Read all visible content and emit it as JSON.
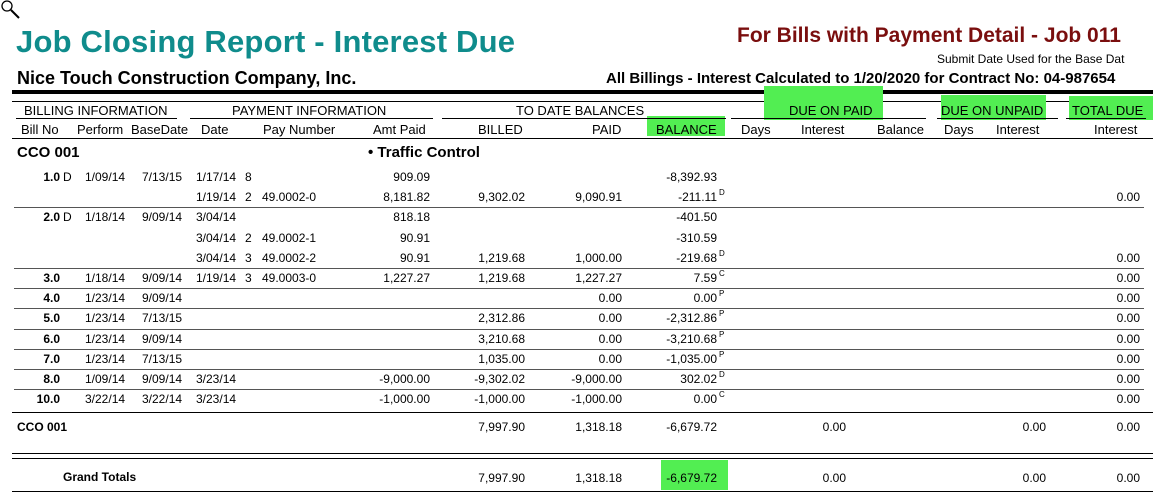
{
  "header": {
    "title": "Job Closing Report - Interest Due",
    "subtitle": "For Bills with Payment Detail - Job 011",
    "submit_note": "Submit Date Used for the Base Dat",
    "company": "Nice Touch Construction Company, Inc.",
    "billings_line": "All Billings - Interest Calculated to  1/20/2020 for Contract No: 04-987654"
  },
  "group_headers": {
    "billing": "BILLING INFORMATION",
    "payment": "PAYMENT INFORMATION",
    "to_date": "TO DATE BALANCES",
    "due_paid": "DUE ON PAID",
    "due_unpaid": "DUE ON UNPAID",
    "total_due": "TOTAL DUE"
  },
  "columns": {
    "bill_no": "Bill No",
    "perform": "Perform",
    "base_date": "BaseDate",
    "date": "Date",
    "pay_number": "Pay Number",
    "amt_paid": "Amt Paid",
    "billed": "BILLED",
    "paid": "PAID",
    "balance": "BALANCE",
    "days_paid": "Days",
    "interest_paid": "Interest",
    "balance_paid": "Balance",
    "days_unpaid": "Days",
    "interest_unpaid": "Interest",
    "interest_total": "Interest"
  },
  "section": {
    "code": "CCO 001",
    "name": "• Traffic Control"
  },
  "rows": [
    {
      "bill": "1.0",
      "flag": "D",
      "perform": "1/09/14",
      "base": "7/13/15",
      "date": "1/17/14",
      "seq": "8",
      "pay_no": "",
      "amt": "909.09",
      "billed": "",
      "paid": "",
      "balance": "-8,392.93",
      "bal_flag": "",
      "total": ""
    },
    {
      "bill": "",
      "flag": "",
      "perform": "",
      "base": "",
      "date": "1/19/14",
      "seq": "2",
      "pay_no": "49.0002-0",
      "amt": "8,181.82",
      "billed": "9,302.02",
      "paid": "9,090.91",
      "balance": "-211.11",
      "bal_flag": "D",
      "total": "0.00"
    },
    {
      "bill": "2.0",
      "flag": "D",
      "perform": "1/18/14",
      "base": "9/09/14",
      "date": "3/04/14",
      "seq": "",
      "pay_no": "",
      "amt": "818.18",
      "billed": "",
      "paid": "",
      "balance": "-401.50",
      "bal_flag": "",
      "total": ""
    },
    {
      "bill": "",
      "flag": "",
      "perform": "",
      "base": "",
      "date": "3/04/14",
      "seq": "2",
      "pay_no": "49.0002-1",
      "amt": "90.91",
      "billed": "",
      "paid": "",
      "balance": "-310.59",
      "bal_flag": "",
      "total": ""
    },
    {
      "bill": "",
      "flag": "",
      "perform": "",
      "base": "",
      "date": "3/04/14",
      "seq": "3",
      "pay_no": "49.0002-2",
      "amt": "90.91",
      "billed": "1,219.68",
      "paid": "1,000.00",
      "balance": "-219.68",
      "bal_flag": "D",
      "total": "0.00"
    },
    {
      "bill": "3.0",
      "flag": "",
      "perform": "1/18/14",
      "base": "9/09/14",
      "date": "1/19/14",
      "seq": "3",
      "pay_no": "49.0003-0",
      "amt": "1,227.27",
      "billed": "1,219.68",
      "paid": "1,227.27",
      "balance": "7.59",
      "bal_flag": "C",
      "total": "0.00"
    },
    {
      "bill": "4.0",
      "flag": "",
      "perform": "1/23/14",
      "base": "9/09/14",
      "date": "",
      "seq": "",
      "pay_no": "",
      "amt": "",
      "billed": "",
      "paid": "0.00",
      "balance": "0.00",
      "bal_flag": "P",
      "total": "0.00"
    },
    {
      "bill": "5.0",
      "flag": "",
      "perform": "1/23/14",
      "base": "7/13/15",
      "date": "",
      "seq": "",
      "pay_no": "",
      "amt": "",
      "billed": "2,312.86",
      "paid": "0.00",
      "balance": "-2,312.86",
      "bal_flag": "P",
      "total": "0.00"
    },
    {
      "bill": "6.0",
      "flag": "",
      "perform": "1/23/14",
      "base": "9/09/14",
      "date": "",
      "seq": "",
      "pay_no": "",
      "amt": "",
      "billed": "3,210.68",
      "paid": "0.00",
      "balance": "-3,210.68",
      "bal_flag": "P",
      "total": "0.00"
    },
    {
      "bill": "7.0",
      "flag": "",
      "perform": "1/23/14",
      "base": "7/13/15",
      "date": "",
      "seq": "",
      "pay_no": "",
      "amt": "",
      "billed": "1,035.00",
      "paid": "0.00",
      "balance": "-1,035.00",
      "bal_flag": "P",
      "total": "0.00"
    },
    {
      "bill": "8.0",
      "flag": "",
      "perform": "1/09/14",
      "base": "9/09/14",
      "date": "3/23/14",
      "seq": "",
      "pay_no": "",
      "amt": "-9,000.00",
      "billed": "-9,302.02",
      "paid": "-9,000.00",
      "balance": "302.02",
      "bal_flag": "D",
      "total": "0.00"
    },
    {
      "bill": "10.0",
      "flag": "",
      "perform": "3/22/14",
      "base": "3/22/14",
      "date": "3/23/14",
      "seq": "",
      "pay_no": "",
      "amt": "-1,000.00",
      "billed": "-1,000.00",
      "paid": "-1,000.00",
      "balance": "0.00",
      "bal_flag": "C",
      "total": "0.00"
    }
  ],
  "subtotal": {
    "label": "CCO 001",
    "billed": "7,997.90",
    "paid": "1,318.18",
    "balance": "-6,679.72",
    "interest_paid": "0.00",
    "interest_unpaid": "0.00",
    "total": "0.00"
  },
  "grand_totals": {
    "label": "Grand Totals",
    "billed": "7,997.90",
    "paid": "1,318.18",
    "balance": "-6,679.72",
    "interest_paid": "0.00",
    "interest_unpaid": "0.00",
    "total": "0.00"
  },
  "colors": {
    "title": "#0f8c8c",
    "subtitle": "#7a0e0e",
    "highlight": "#52ee52"
  },
  "icons": {
    "cursor": "magnifier-icon"
  }
}
